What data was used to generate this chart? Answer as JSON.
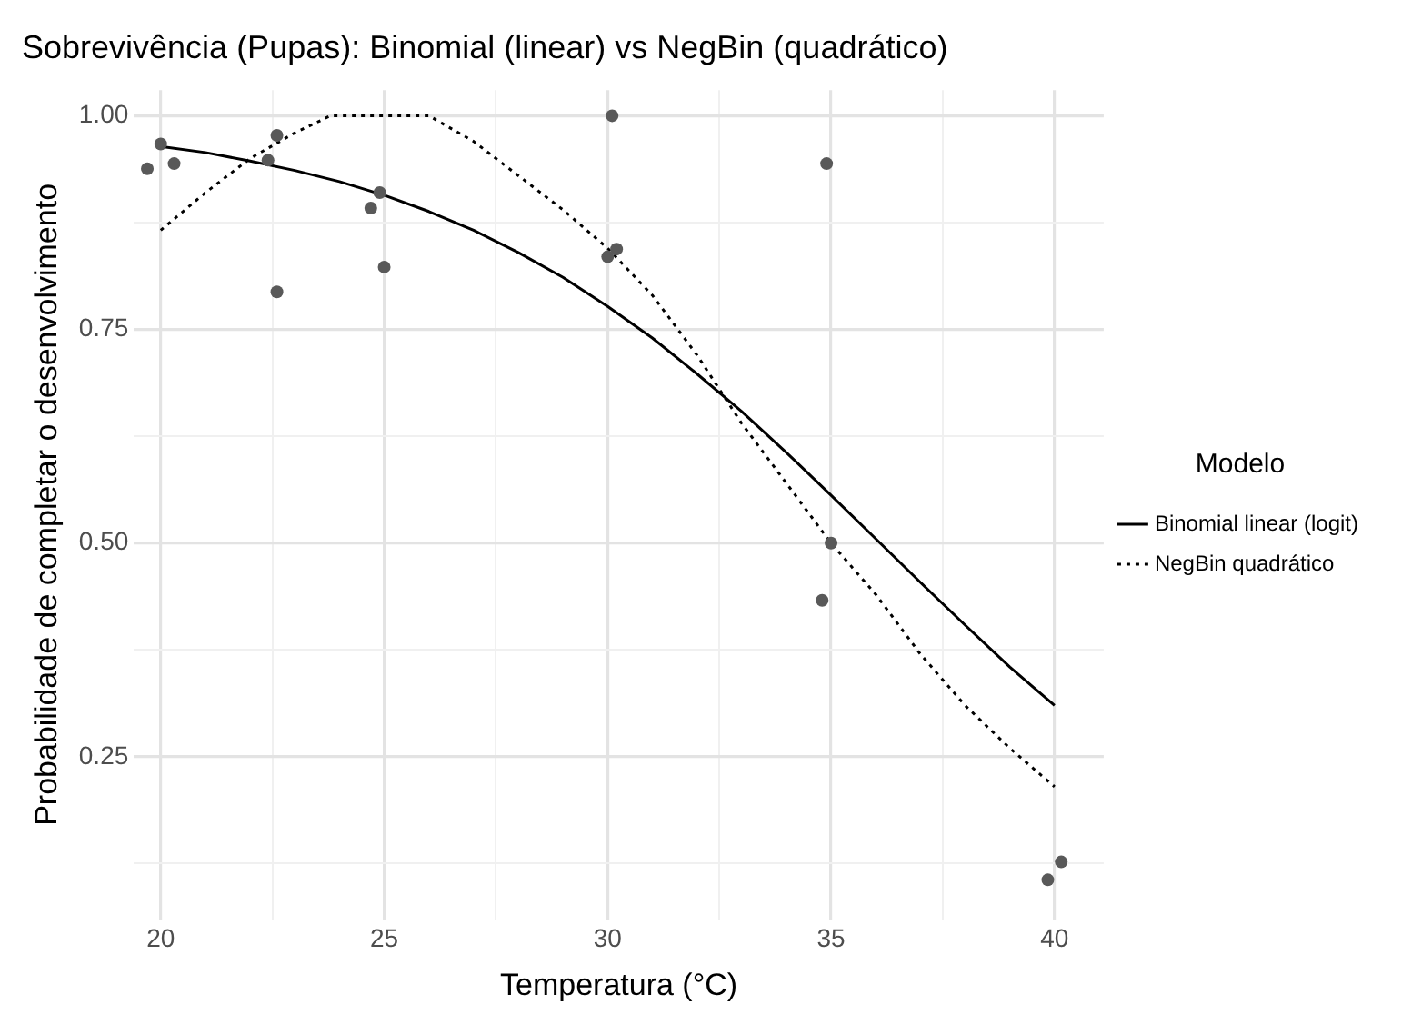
{
  "chart_data": {
    "type": "scatter",
    "title": "Sobrevivência (Pupas): Binomial (linear) vs NegBin (quadrático)",
    "xlabel": "Temperatura (°C)",
    "ylabel": "Probabilidade de completar o desenvolvimento",
    "legend_title": "Modelo",
    "legend": "right",
    "grid": true,
    "marker": "circle",
    "xlim": [
      19.4,
      41.1
    ],
    "xticks": [
      20,
      {
        "value": 22.5,
        "label": null
      },
      25,
      {
        "value": 27.5,
        "label": null
      },
      30,
      {
        "value": 32.5,
        "label": null
      },
      35,
      {
        "value": 37.5,
        "label": null
      },
      40
    ],
    "ylim": [
      0.06,
      1.03
    ],
    "yticks": [
      {
        "value": 0.125,
        "label": null
      },
      {
        "value": 0.25,
        "label": "0.25"
      },
      {
        "value": 0.375,
        "label": null
      },
      {
        "value": 0.5,
        "label": "0.50"
      },
      {
        "value": 0.625,
        "label": null
      },
      {
        "value": 0.75,
        "label": "0.75"
      },
      {
        "value": 0.875,
        "label": null
      },
      {
        "value": 1,
        "label": "1.00"
      }
    ],
    "series": [
      {
        "color": "#595959",
        "x": [
          20.0,
          19.7,
          20.3,
          22.4,
          22.6,
          22.6,
          24.7,
          24.9,
          25.0,
          30.1,
          34.9,
          30.2,
          30.0,
          35.0,
          34.8,
          39.85,
          40.15
        ],
        "values": [
          0.967,
          0.938,
          0.944,
          0.948,
          0.977,
          0.794,
          0.892,
          0.91,
          0.823,
          1.0,
          0.944,
          0.844,
          0.835,
          0.5,
          0.433,
          0.106,
          0.127
        ]
      },
      {
        "type": "line",
        "name": "Binomial linear (logit)",
        "color": "#000000",
        "line_style": "solid",
        "marker": "none",
        "x": [
          20,
          21,
          22,
          23,
          24,
          25,
          26,
          27,
          28,
          29,
          30,
          31,
          32,
          33,
          34,
          35,
          36,
          37,
          38,
          39,
          40
        ],
        "values": [
          0.964,
          0.957,
          0.947,
          0.936,
          0.923,
          0.907,
          0.888,
          0.866,
          0.84,
          0.811,
          0.777,
          0.74,
          0.698,
          0.654,
          0.606,
          0.556,
          0.505,
          0.454,
          0.404,
          0.355,
          0.31
        ]
      },
      {
        "type": "line",
        "name": "NegBin quadrático",
        "color": "#000000",
        "line_style": "dotted",
        "marker": "none",
        "x": [
          20,
          21,
          22,
          23,
          23.8,
          26,
          27,
          28,
          29,
          30,
          31,
          32,
          33,
          34,
          35,
          36,
          37,
          38,
          39,
          40
        ],
        "values": [
          0.866,
          0.91,
          0.95,
          0.98,
          1.0,
          1.0,
          0.97,
          0.93,
          0.89,
          0.845,
          0.79,
          0.72,
          0.64,
          0.57,
          0.5,
          0.44,
          0.37,
          0.31,
          0.26,
          0.215
        ]
      }
    ]
  }
}
